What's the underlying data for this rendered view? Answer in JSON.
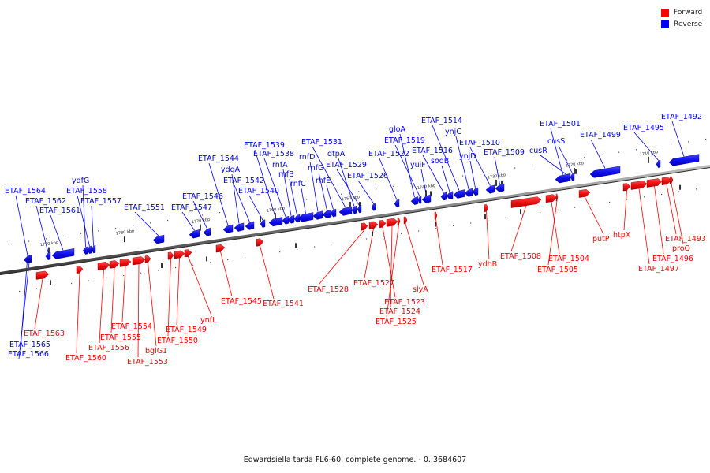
{
  "legend": {
    "forward_label": "Forward",
    "reverse_label": "Reverse",
    "forward_color": "#ff0000",
    "reverse_color": "#0000ff"
  },
  "caption": "Edwardsiella tarda FL6-60, complete genome. - 0..3684607",
  "ticks": [
    "1790 kbp",
    "1780 kbp",
    "1770 kbp",
    "1760 kbp",
    "1750 kbp",
    "1740 kbp",
    "1730 kbp",
    "1720 kbp",
    "1710 kbp"
  ],
  "genes": [
    {
      "name": "ETAF_1564",
      "strand": "reverse"
    },
    {
      "name": "ETAF_1562",
      "strand": "reverse"
    },
    {
      "name": "ETAF_1561",
      "strand": "reverse"
    },
    {
      "name": "ydfG",
      "strand": "reverse"
    },
    {
      "name": "ETAF_1558",
      "strand": "reverse"
    },
    {
      "name": "ETAF_1557",
      "strand": "reverse"
    },
    {
      "name": "ETAF_1551",
      "strand": "reverse"
    },
    {
      "name": "ETAF_1547",
      "strand": "reverse"
    },
    {
      "name": "ETAF_1546",
      "strand": "reverse"
    },
    {
      "name": "ETAF_1544",
      "strand": "reverse"
    },
    {
      "name": "ydgA",
      "strand": "reverse"
    },
    {
      "name": "ETAF_1542",
      "strand": "reverse"
    },
    {
      "name": "ETAF_1540",
      "strand": "reverse"
    },
    {
      "name": "ETAF_1539",
      "strand": "reverse"
    },
    {
      "name": "ETAF_1538",
      "strand": "reverse"
    },
    {
      "name": "rnfA",
      "strand": "reverse"
    },
    {
      "name": "rnfB",
      "strand": "reverse"
    },
    {
      "name": "rnfC",
      "strand": "reverse"
    },
    {
      "name": "rnfD",
      "strand": "reverse"
    },
    {
      "name": "rnfG",
      "strand": "reverse"
    },
    {
      "name": "rnfE",
      "strand": "reverse"
    },
    {
      "name": "ETAF_1531",
      "strand": "reverse"
    },
    {
      "name": "dtpA",
      "strand": "reverse"
    },
    {
      "name": "ETAF_1529",
      "strand": "reverse"
    },
    {
      "name": "ETAF_1526",
      "strand": "reverse"
    },
    {
      "name": "ETAF_1522",
      "strand": "reverse"
    },
    {
      "name": "gloA",
      "strand": "reverse"
    },
    {
      "name": "ETAF_1519",
      "strand": "reverse"
    },
    {
      "name": "yuiF",
      "strand": "reverse"
    },
    {
      "name": "ETAF_1516",
      "strand": "reverse"
    },
    {
      "name": "sodB",
      "strand": "reverse"
    },
    {
      "name": "ETAF_1514",
      "strand": "reverse"
    },
    {
      "name": "ynjC",
      "strand": "reverse"
    },
    {
      "name": "ynjD",
      "strand": "reverse"
    },
    {
      "name": "ETAF_1510",
      "strand": "reverse"
    },
    {
      "name": "ETAF_1509",
      "strand": "reverse"
    },
    {
      "name": "ETAF_1501",
      "strand": "reverse"
    },
    {
      "name": "cusS",
      "strand": "reverse"
    },
    {
      "name": "cusR",
      "strand": "reverse"
    },
    {
      "name": "ETAF_1499",
      "strand": "reverse"
    },
    {
      "name": "ETAF_1495",
      "strand": "reverse"
    },
    {
      "name": "ETAF_1492",
      "strand": "reverse"
    },
    {
      "name": "ETAF_1565",
      "strand": "reverse"
    },
    {
      "name": "ETAF_1566",
      "strand": "reverse"
    },
    {
      "name": "ETAF_1563",
      "strand": "forward"
    },
    {
      "name": "ETAF_1560",
      "strand": "forward"
    },
    {
      "name": "ETAF_1556",
      "strand": "forward"
    },
    {
      "name": "ETAF_1555",
      "strand": "forward"
    },
    {
      "name": "ETAF_1554",
      "strand": "forward"
    },
    {
      "name": "ETAF_1553",
      "strand": "forward"
    },
    {
      "name": "bglG1",
      "strand": "forward"
    },
    {
      "name": "ETAF_1550",
      "strand": "forward"
    },
    {
      "name": "ETAF_1549",
      "strand": "forward"
    },
    {
      "name": "ynfL",
      "strand": "forward"
    },
    {
      "name": "ETAF_1545",
      "strand": "forward"
    },
    {
      "name": "ETAF_1541",
      "strand": "forward"
    },
    {
      "name": "ETAF_1528",
      "strand": "forward"
    },
    {
      "name": "ETAF_1527",
      "strand": "forward"
    },
    {
      "name": "ETAF_1523",
      "strand": "forward"
    },
    {
      "name": "ETAF_1524",
      "strand": "forward"
    },
    {
      "name": "ETAF_1525",
      "strand": "forward"
    },
    {
      "name": "slyA",
      "strand": "forward"
    },
    {
      "name": "ETAF_1517",
      "strand": "forward"
    },
    {
      "name": "ydhB",
      "strand": "forward"
    },
    {
      "name": "ETAF_1508",
      "strand": "forward"
    },
    {
      "name": "ETAF_1504",
      "strand": "forward"
    },
    {
      "name": "ETAF_1505",
      "strand": "forward"
    },
    {
      "name": "putP",
      "strand": "forward"
    },
    {
      "name": "htpX",
      "strand": "forward"
    },
    {
      "name": "ETAF_1493",
      "strand": "forward"
    },
    {
      "name": "proQ",
      "strand": "forward"
    },
    {
      "name": "ETAF_1496",
      "strand": "forward"
    },
    {
      "name": "ETAF_1497",
      "strand": "forward"
    }
  ]
}
